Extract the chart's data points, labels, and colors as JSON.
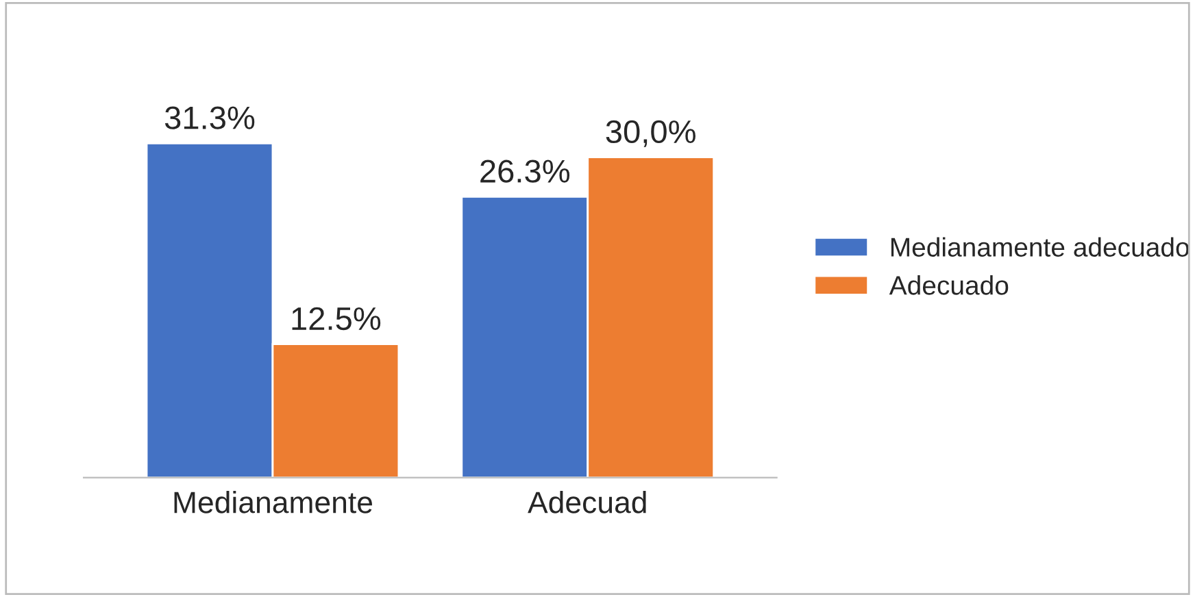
{
  "chart_data": {
    "type": "bar",
    "categories": [
      "Medianamente",
      "Adecuad"
    ],
    "series": [
      {
        "name": "Medianamente adecuado",
        "color": "#4472c4",
        "values": [
          31.3,
          26.3
        ],
        "value_labels": [
          "31.3%",
          "26.3%"
        ]
      },
      {
        "name": "Adecuado",
        "color": "#ed7d31",
        "values": [
          12.5,
          30.0
        ],
        "value_labels": [
          "12.5%",
          "30,0%"
        ]
      }
    ],
    "legend": "right",
    "grid": false,
    "tick_labels": "x"
  }
}
